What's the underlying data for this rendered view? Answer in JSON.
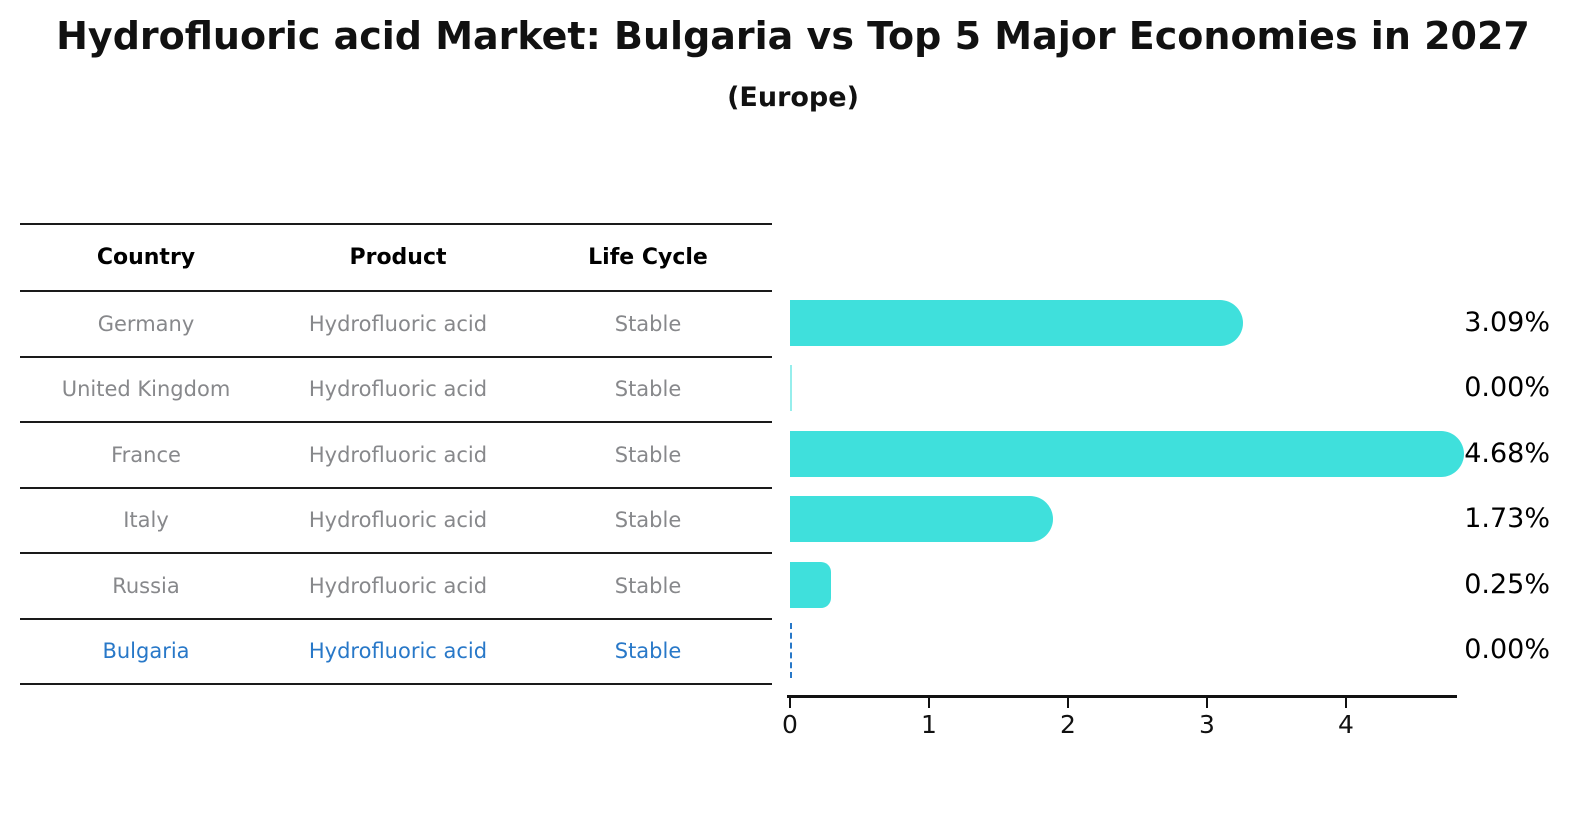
{
  "title": "Hydrofluoric acid Market: Bulgaria vs Top 5 Major Economies in 2027",
  "subtitle": "(Europe)",
  "colors": {
    "bar": "#3FE0DC",
    "highlight_blue": "#2878C8",
    "table_text_gray": "#87888b",
    "text_black": "#111111"
  },
  "table": {
    "headers": [
      "Country",
      "Product",
      "Life Cycle"
    ],
    "rows": [
      {
        "country": "Germany",
        "product": "Hydrofluoric acid",
        "life_cycle": "Stable",
        "highlighted": false
      },
      {
        "country": "United Kingdom",
        "product": "Hydrofluoric acid",
        "life_cycle": "Stable",
        "highlighted": false
      },
      {
        "country": "France",
        "product": "Hydrofluoric acid",
        "life_cycle": "Stable",
        "highlighted": false
      },
      {
        "country": "Italy",
        "product": "Hydrofluoric acid",
        "life_cycle": "Stable",
        "highlighted": false
      },
      {
        "country": "Russia",
        "product": "Hydrofluoric acid",
        "life_cycle": "Stable",
        "highlighted": false
      },
      {
        "country": "Bulgaria",
        "product": "Hydrofluoric acid",
        "life_cycle": "Stable",
        "highlighted": true
      }
    ]
  },
  "chart_data": {
    "type": "bar",
    "orientation": "horizontal",
    "title": "Hydrofluoric acid Market: Bulgaria vs Top 5 Major Economies in 2027",
    "subtitle": "(Europe)",
    "categories": [
      "Germany",
      "United Kingdom",
      "France",
      "Italy",
      "Russia",
      "Bulgaria"
    ],
    "values": [
      3.09,
      0.0,
      4.68,
      1.73,
      0.25,
      0.0
    ],
    "value_labels": [
      "3.09%",
      "0.00%",
      "4.68%",
      "1.73%",
      "0.25%",
      "0.00%"
    ],
    "x_ticks": [
      0,
      1,
      2,
      3,
      4
    ],
    "xlim": [
      0,
      4.78
    ],
    "xlabel": "",
    "ylabel": "",
    "grid": false,
    "legend": "none",
    "bar_color": "#3FE0DC",
    "highlight_category": "Bulgaria",
    "highlight_marker": "dashed vertical line at zero",
    "highlight_color": "#2878C8"
  }
}
